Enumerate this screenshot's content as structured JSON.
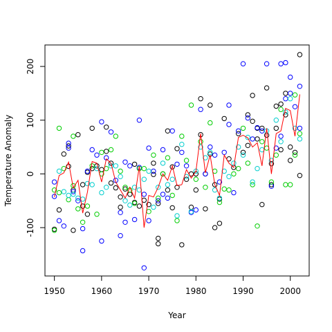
{
  "chart_data": {
    "type": "scatter",
    "title": "",
    "xlabel": "Year",
    "ylabel": "Temperature Anomaly",
    "xlim": [
      1948,
      2004
    ],
    "ylim": [
      -190,
      240
    ],
    "x_ticks": [
      1950,
      1960,
      1970,
      1980,
      1990,
      2000
    ],
    "y_ticks": [
      -100,
      0,
      100,
      200
    ],
    "grid": false,
    "legend": "none",
    "marker": "open-circle",
    "series": [
      {
        "color": "#000000",
        "points": [
          [
            1950,
            -103
          ],
          [
            1951,
            -67
          ],
          [
            1952,
            37
          ],
          [
            1953,
            52
          ],
          [
            1953,
            14
          ],
          [
            1954,
            -105
          ],
          [
            1954,
            -30
          ],
          [
            1955,
            73
          ],
          [
            1956,
            -20
          ],
          [
            1956,
            -60
          ],
          [
            1957,
            3
          ],
          [
            1957,
            -75
          ],
          [
            1958,
            85
          ],
          [
            1958,
            10
          ],
          [
            1959,
            15
          ],
          [
            1960,
            8
          ],
          [
            1961,
            42
          ],
          [
            1961,
            87
          ],
          [
            1962,
            20
          ],
          [
            1962,
            -17
          ],
          [
            1963,
            -26
          ],
          [
            1964,
            -43
          ],
          [
            1964,
            -62
          ],
          [
            1965,
            -28
          ],
          [
            1966,
            -38
          ],
          [
            1967,
            -53
          ],
          [
            1967,
            18
          ],
          [
            1968,
            -60
          ],
          [
            1969,
            -49
          ],
          [
            1970,
            -57
          ],
          [
            1971,
            20
          ],
          [
            1971,
            -1
          ],
          [
            1972,
            -130
          ],
          [
            1972,
            -120
          ],
          [
            1972,
            -55
          ],
          [
            1973,
            0
          ],
          [
            1974,
            -30
          ],
          [
            1974,
            80
          ],
          [
            1975,
            -63
          ],
          [
            1975,
            13
          ],
          [
            1976,
            47
          ],
          [
            1976,
            -25
          ],
          [
            1977,
            -132
          ],
          [
            1978,
            -10
          ],
          [
            1979,
            -62
          ],
          [
            1979,
            0
          ],
          [
            1980,
            -30
          ],
          [
            1980,
            0
          ],
          [
            1981,
            140
          ],
          [
            1981,
            73
          ],
          [
            1982,
            0
          ],
          [
            1982,
            -65
          ],
          [
            1983,
            37
          ],
          [
            1983,
            128
          ],
          [
            1984,
            -100
          ],
          [
            1984,
            -20
          ],
          [
            1985,
            -92
          ],
          [
            1985,
            -47
          ],
          [
            1986,
            103
          ],
          [
            1987,
            28
          ],
          [
            1988,
            12
          ],
          [
            1989,
            75
          ],
          [
            1990,
            40
          ],
          [
            1991,
            110
          ],
          [
            1991,
            53
          ],
          [
            1992,
            146
          ],
          [
            1992,
            98
          ],
          [
            1993,
            85
          ],
          [
            1993,
            65
          ],
          [
            1994,
            -57
          ],
          [
            1994,
            85
          ],
          [
            1995,
            160
          ],
          [
            1995,
            72
          ],
          [
            1996,
            -20
          ],
          [
            1996,
            19
          ],
          [
            1997,
            126
          ],
          [
            1997,
            85
          ],
          [
            1998,
            130
          ],
          [
            1998,
            45
          ],
          [
            1999,
            150
          ],
          [
            1999,
            110
          ],
          [
            2000,
            50
          ],
          [
            2000,
            25
          ],
          [
            2001,
            40
          ],
          [
            2002,
            222
          ],
          [
            2002,
            -3
          ]
        ]
      },
      {
        "color": "#0000ff",
        "points": [
          [
            1950,
            -15
          ],
          [
            1950,
            -42
          ],
          [
            1951,
            -87
          ],
          [
            1952,
            -97
          ],
          [
            1953,
            57
          ],
          [
            1953,
            48
          ],
          [
            1954,
            -33
          ],
          [
            1955,
            -50
          ],
          [
            1956,
            -143
          ],
          [
            1956,
            -102
          ],
          [
            1957,
            5
          ],
          [
            1958,
            45
          ],
          [
            1959,
            35
          ],
          [
            1960,
            97
          ],
          [
            1960,
            -125
          ],
          [
            1961,
            30
          ],
          [
            1962,
            78
          ],
          [
            1963,
            -12
          ],
          [
            1964,
            -72
          ],
          [
            1964,
            -115
          ],
          [
            1965,
            22
          ],
          [
            1965,
            -90
          ],
          [
            1966,
            15
          ],
          [
            1967,
            -85
          ],
          [
            1968,
            100
          ],
          [
            1968,
            12
          ],
          [
            1969,
            -175
          ],
          [
            1969,
            -38
          ],
          [
            1970,
            48
          ],
          [
            1970,
            -87
          ],
          [
            1971,
            5
          ],
          [
            1972,
            -50
          ],
          [
            1973,
            45
          ],
          [
            1973,
            -38
          ],
          [
            1974,
            -45
          ],
          [
            1975,
            80
          ],
          [
            1976,
            18
          ],
          [
            1977,
            40
          ],
          [
            1978,
            15
          ],
          [
            1979,
            -72
          ],
          [
            1980,
            -67
          ],
          [
            1981,
            120
          ],
          [
            1982,
            0
          ],
          [
            1983,
            50
          ],
          [
            1984,
            35
          ],
          [
            1985,
            -15
          ],
          [
            1986,
            40
          ],
          [
            1987,
            128
          ],
          [
            1987,
            92
          ],
          [
            1988,
            -35
          ],
          [
            1989,
            80
          ],
          [
            1990,
            205
          ],
          [
            1991,
            104
          ],
          [
            1992,
            65
          ],
          [
            1993,
            86
          ],
          [
            1994,
            80
          ],
          [
            1995,
            205
          ],
          [
            1996,
            -23
          ],
          [
            1997,
            48
          ],
          [
            1998,
            205
          ],
          [
            1998,
            70
          ],
          [
            1999,
            207
          ],
          [
            1999,
            140
          ],
          [
            2000,
            180
          ],
          [
            2000,
            150
          ],
          [
            2001,
            125
          ],
          [
            2002,
            163
          ],
          [
            2002,
            85
          ]
        ]
      },
      {
        "color": "#00cd00",
        "points": [
          [
            1950,
            -30
          ],
          [
            1950,
            -105
          ],
          [
            1951,
            85
          ],
          [
            1951,
            -35
          ],
          [
            1952,
            10
          ],
          [
            1953,
            -48
          ],
          [
            1954,
            70
          ],
          [
            1954,
            -22
          ],
          [
            1955,
            -65
          ],
          [
            1956,
            -90
          ],
          [
            1957,
            -60
          ],
          [
            1958,
            15
          ],
          [
            1959,
            -75
          ],
          [
            1960,
            0
          ],
          [
            1960,
            40
          ],
          [
            1961,
            10
          ],
          [
            1962,
            45
          ],
          [
            1963,
            70
          ],
          [
            1964,
            5
          ],
          [
            1965,
            -25
          ],
          [
            1966,
            -30
          ],
          [
            1967,
            -55
          ],
          [
            1968,
            10
          ],
          [
            1969,
            10
          ],
          [
            1970,
            -70
          ],
          [
            1971,
            35
          ],
          [
            1972,
            -45
          ],
          [
            1973,
            0
          ],
          [
            1974,
            30
          ],
          [
            1975,
            -40
          ],
          [
            1976,
            -87
          ],
          [
            1977,
            70
          ],
          [
            1978,
            25
          ],
          [
            1979,
            128
          ],
          [
            1980,
            -10
          ],
          [
            1981,
            60
          ],
          [
            1982,
            -25
          ],
          [
            1983,
            95
          ],
          [
            1984,
            5
          ],
          [
            1985,
            -53
          ],
          [
            1986,
            -28
          ],
          [
            1987,
            -30
          ],
          [
            1988,
            0
          ],
          [
            1989,
            10
          ],
          [
            1990,
            85
          ],
          [
            1991,
            20
          ],
          [
            1992,
            -20
          ],
          [
            1993,
            -97
          ],
          [
            1994,
            60
          ],
          [
            1995,
            48
          ],
          [
            1996,
            -15
          ],
          [
            1997,
            35
          ],
          [
            1998,
            120
          ],
          [
            1999,
            -20
          ],
          [
            2000,
            -20
          ],
          [
            2001,
            147
          ],
          [
            2002,
            75
          ],
          [
            2001,
            35
          ]
        ]
      },
      {
        "color": "#00cdcd",
        "points": [
          [
            1951,
            5
          ],
          [
            1952,
            -33
          ],
          [
            1953,
            -40
          ],
          [
            1954,
            -38
          ],
          [
            1955,
            -45
          ],
          [
            1956,
            -47
          ],
          [
            1957,
            -18
          ],
          [
            1958,
            -20
          ],
          [
            1959,
            10
          ],
          [
            1960,
            -35
          ],
          [
            1961,
            -25
          ],
          [
            1962,
            15
          ],
          [
            1963,
            15
          ],
          [
            1964,
            -5
          ],
          [
            1965,
            -50
          ],
          [
            1966,
            -58
          ],
          [
            1967,
            -25
          ],
          [
            1968,
            -30
          ],
          [
            1969,
            -10
          ],
          [
            1970,
            5
          ],
          [
            1971,
            -62
          ],
          [
            1972,
            -25
          ],
          [
            1973,
            20
          ],
          [
            1974,
            -20
          ],
          [
            1975,
            -10
          ],
          [
            1976,
            -78
          ],
          [
            1977,
            55
          ],
          [
            1978,
            -5
          ],
          [
            1979,
            -70
          ],
          [
            1980,
            5
          ],
          [
            1981,
            50
          ],
          [
            1982,
            30
          ],
          [
            1983,
            40
          ],
          [
            1984,
            -30
          ],
          [
            1985,
            -45
          ],
          [
            1986,
            5
          ],
          [
            1987,
            -5
          ],
          [
            1988,
            20
          ],
          [
            1989,
            50
          ],
          [
            1990,
            35
          ],
          [
            1991,
            68
          ],
          [
            1992,
            -15
          ],
          [
            1993,
            10
          ],
          [
            1994,
            45
          ],
          [
            1995,
            80
          ],
          [
            1996,
            25
          ],
          [
            1997,
            100
          ],
          [
            1998,
            60
          ],
          [
            1999,
            115
          ],
          [
            2000,
            140
          ],
          [
            2001,
            85
          ],
          [
            2002,
            65
          ]
        ]
      },
      {
        "color": "#ff0000",
        "type": "line",
        "points": [
          [
            1950,
            -43
          ],
          [
            1951,
            -3
          ],
          [
            1952,
            2
          ],
          [
            1953,
            22
          ],
          [
            1954,
            -26
          ],
          [
            1955,
            -12
          ],
          [
            1956,
            -73
          ],
          [
            1957,
            -34
          ],
          [
            1958,
            23
          ],
          [
            1959,
            20
          ],
          [
            1960,
            -15
          ],
          [
            1961,
            28
          ],
          [
            1962,
            20
          ],
          [
            1963,
            -15
          ],
          [
            1964,
            -30
          ],
          [
            1965,
            -45
          ],
          [
            1966,
            -25
          ],
          [
            1967,
            -45
          ],
          [
            1968,
            14
          ],
          [
            1969,
            -100
          ],
          [
            1970,
            -40
          ],
          [
            1971,
            -43
          ],
          [
            1972,
            -25
          ],
          [
            1973,
            0
          ],
          [
            1974,
            -12
          ],
          [
            1975,
            15
          ],
          [
            1976,
            -22
          ],
          [
            1977,
            -20
          ],
          [
            1978,
            8
          ],
          [
            1979,
            -8
          ],
          [
            1980,
            5
          ],
          [
            1981,
            75
          ],
          [
            1982,
            2
          ],
          [
            1983,
            35
          ],
          [
            1984,
            -20
          ],
          [
            1985,
            -40
          ],
          [
            1986,
            35
          ],
          [
            1987,
            20
          ],
          [
            1988,
            12
          ],
          [
            1989,
            68
          ],
          [
            1990,
            72
          ],
          [
            1991,
            67
          ],
          [
            1992,
            50
          ],
          [
            1993,
            58
          ],
          [
            1994,
            15
          ],
          [
            1995,
            85
          ],
          [
            1996,
            0
          ],
          [
            1997,
            75
          ],
          [
            1998,
            80
          ],
          [
            1999,
            122
          ],
          [
            2000,
            118
          ],
          [
            2001,
            70
          ],
          [
            2002,
            148
          ]
        ]
      }
    ]
  }
}
